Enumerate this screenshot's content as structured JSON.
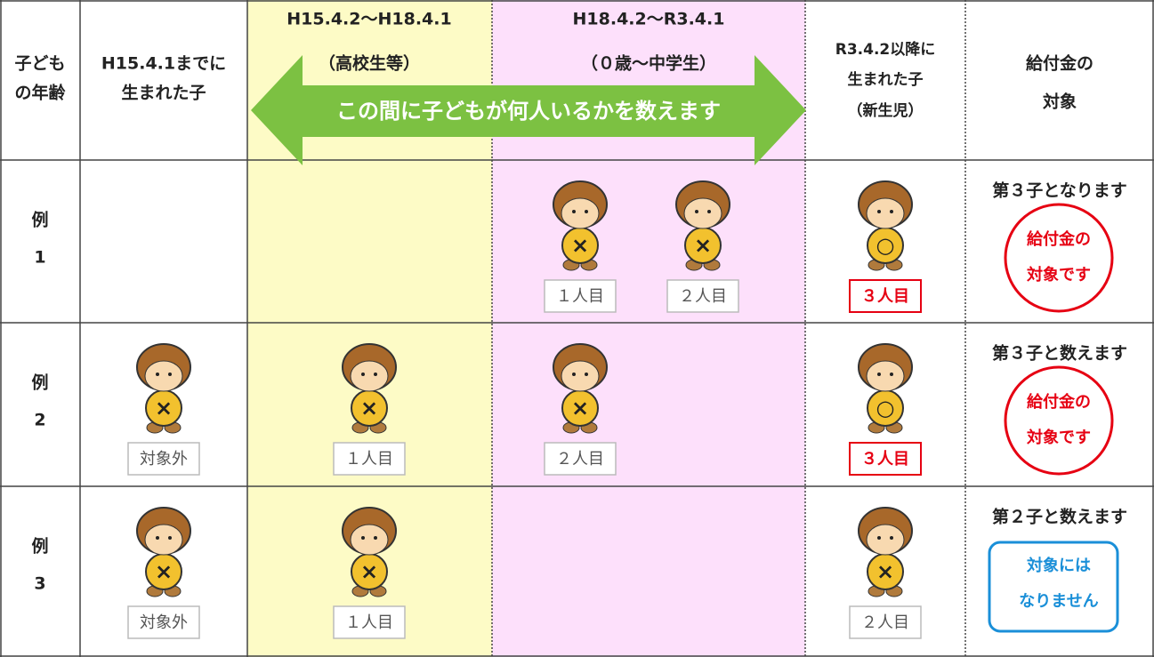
{
  "header": [
    [
      "子ども",
      "の年齢"
    ],
    [
      "H15.4.1までに",
      "生まれた子"
    ],
    [
      "H15.4.2〜H18.4.1",
      "（高校生等）"
    ],
    [
      "H18.4.2〜R3.4.1",
      "（０歳〜中学生）"
    ],
    [
      "R3.4.2以降に",
      "生まれた子",
      "（新生児）"
    ],
    [
      "給付金の",
      "対象"
    ]
  ],
  "arrow_text": "この間に子どもが何人いるかを数えます",
  "rows": [
    {
      "label": [
        "例",
        "1"
      ],
      "cells": [
        [],
        [],
        [
          {
            "badge": "×",
            "label": "１人目"
          },
          {
            "badge": "×",
            "label": "２人目"
          }
        ],
        [
          {
            "badge": "○",
            "label": "３人目"
          }
        ]
      ],
      "result": "第３子となります",
      "stamp": [
        "給付金の",
        "対象です"
      ],
      "stamp_color": "#e60012"
    },
    {
      "label": [
        "例",
        "2"
      ],
      "cells": [
        [
          {
            "badge": "×",
            "label": "対象外"
          }
        ],
        [
          {
            "badge": "×",
            "label": "１人目"
          }
        ],
        [
          {
            "badge": "×",
            "label": "２人目"
          }
        ],
        [
          {
            "badge": "○",
            "label": "３人目"
          }
        ]
      ],
      "result": "第３子と数えます",
      "stamp": [
        "給付金の",
        "対象です"
      ],
      "stamp_color": "#e60012"
    },
    {
      "label": [
        "例",
        "3"
      ],
      "cells": [
        [
          {
            "badge": "×",
            "label": "対象外"
          }
        ],
        [
          {
            "badge": "×",
            "label": "１人目"
          }
        ],
        [],
        [
          {
            "badge": "×",
            "label": "２人目"
          }
        ]
      ],
      "result": "第２子と数えます",
      "stamp": [
        "対象には",
        "なりません"
      ],
      "stamp_color": "#1a8fd8"
    }
  ]
}
